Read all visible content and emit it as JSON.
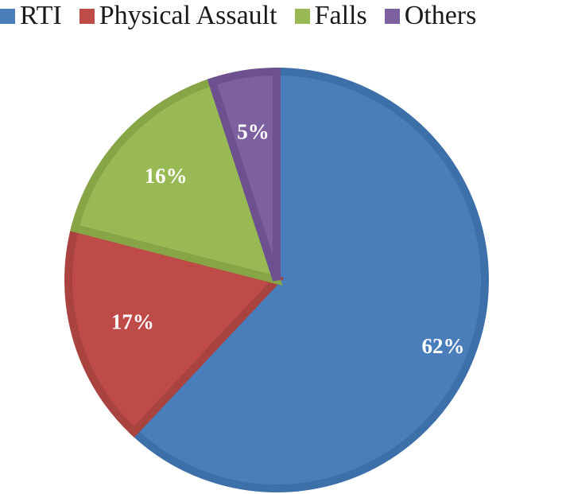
{
  "chart_data": {
    "type": "pie",
    "title": "",
    "legend_position": "top",
    "categories": [
      "RTI",
      "Physical Assault",
      "Falls",
      "Others"
    ],
    "values": [
      62,
      17,
      16,
      5
    ],
    "labels": [
      "62%",
      "17%",
      "16%",
      "5%"
    ],
    "colors": [
      "#4a7ebb",
      "#be4b48",
      "#98b954",
      "#7d60a0"
    ],
    "border_colors": [
      "#3d6fa9",
      "#a84340",
      "#87a547",
      "#6c5090"
    ]
  }
}
